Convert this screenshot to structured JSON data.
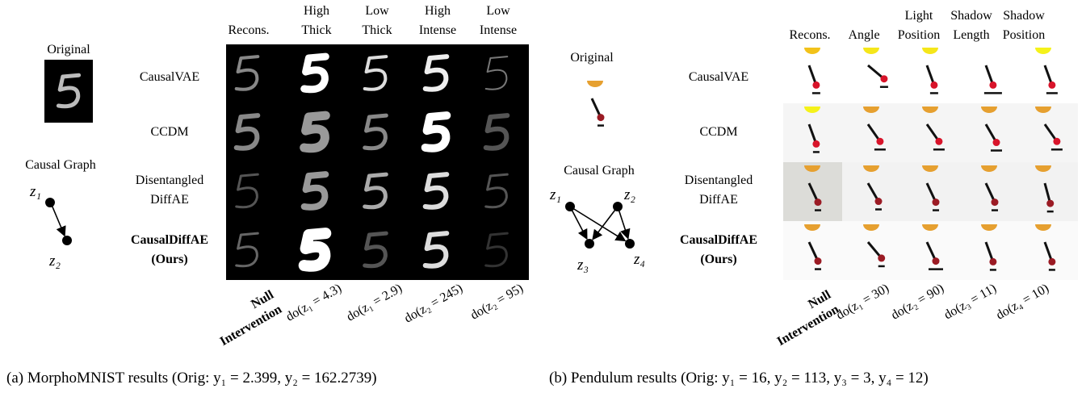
{
  "panels": [
    {
      "original_label": "Original",
      "graph_label": "Causal Graph",
      "nodes": [
        "z₁",
        "z₂"
      ],
      "columns": [
        [
          "Recons."
        ],
        [
          "High",
          "Thick"
        ],
        [
          "Low",
          "Thick"
        ],
        [
          "High",
          "Intense"
        ],
        [
          "Low",
          "Intense"
        ]
      ],
      "rows": [
        [
          "CausalVAE"
        ],
        [
          "CCDM"
        ],
        [
          "Disentangled",
          "DiffAE"
        ],
        [
          "CausalDiffAE",
          "(Ours)"
        ]
      ],
      "interventions": [
        [
          "Null",
          "Intervention"
        ],
        [
          "do(z₁ = 4.3)"
        ],
        [
          "do(z₁ = 2.9)"
        ],
        [
          "do(z₂ = 245)"
        ],
        [
          "do(z₂ = 95)"
        ]
      ],
      "caption": "(a) MorphoMNIST results (Orig: y₁ = 2.399, y₂ = 162.2739)"
    },
    {
      "original_label": "Original",
      "graph_label": "Causal Graph",
      "nodes": [
        "z₁",
        "z₂",
        "z₃",
        "z₄"
      ],
      "columns": [
        [
          "Recons."
        ],
        [
          "Angle"
        ],
        [
          "Light",
          "Position"
        ],
        [
          "Shadow",
          "Length"
        ],
        [
          "Shadow",
          "Position"
        ]
      ],
      "rows": [
        [
          "CausalVAE"
        ],
        [
          "CCDM"
        ],
        [
          "Disentangled",
          "DiffAE"
        ],
        [
          "CausalDiffAE",
          "(Ours)"
        ]
      ],
      "interventions": [
        [
          "Null",
          "Intervention"
        ],
        [
          "do(z₁ = 30)"
        ],
        [
          "do(z₂ = 90)"
        ],
        [
          "do(z₃ = 11)"
        ],
        [
          "do(z₄ = 10)"
        ]
      ],
      "caption": "(b) Pendulum results (Orig: y₁ = 16, y₂ = 113, y₃ = 3, y₄ = 12)"
    }
  ]
}
